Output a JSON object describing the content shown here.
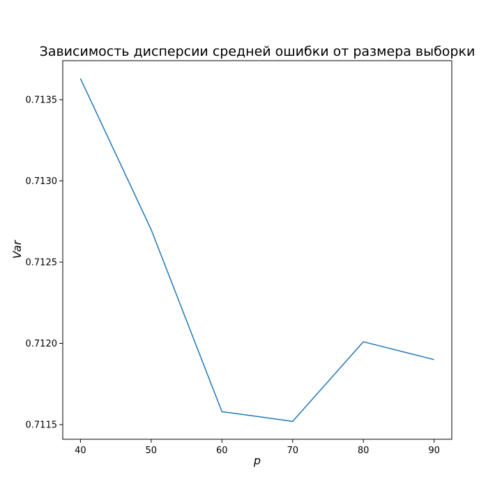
{
  "chart_data": {
    "type": "line",
    "title": "Зависимость дисперсии средней ошибки от размера выборки",
    "xlabel": "p",
    "ylabel": "Var",
    "x": [
      40,
      50,
      60,
      70,
      80,
      90
    ],
    "series": [
      {
        "values": [
          0.71363,
          0.7127,
          0.71158,
          0.71152,
          0.71201,
          0.7119
        ]
      }
    ],
    "xlim": [
      37.5,
      92.5
    ],
    "ylim": [
      0.71141,
      0.71374
    ],
    "xticks": [
      40,
      50,
      60,
      70,
      80,
      90
    ],
    "xtick_labels": [
      "40",
      "50",
      "60",
      "70",
      "80",
      "90"
    ],
    "yticks": [
      0.7115,
      0.712,
      0.7125,
      0.713,
      0.7135
    ],
    "ytick_labels": [
      "0.7115",
      "0.7120",
      "0.7125",
      "0.7130",
      "0.7135"
    ],
    "grid": false,
    "line_color": "#1f77b4"
  }
}
